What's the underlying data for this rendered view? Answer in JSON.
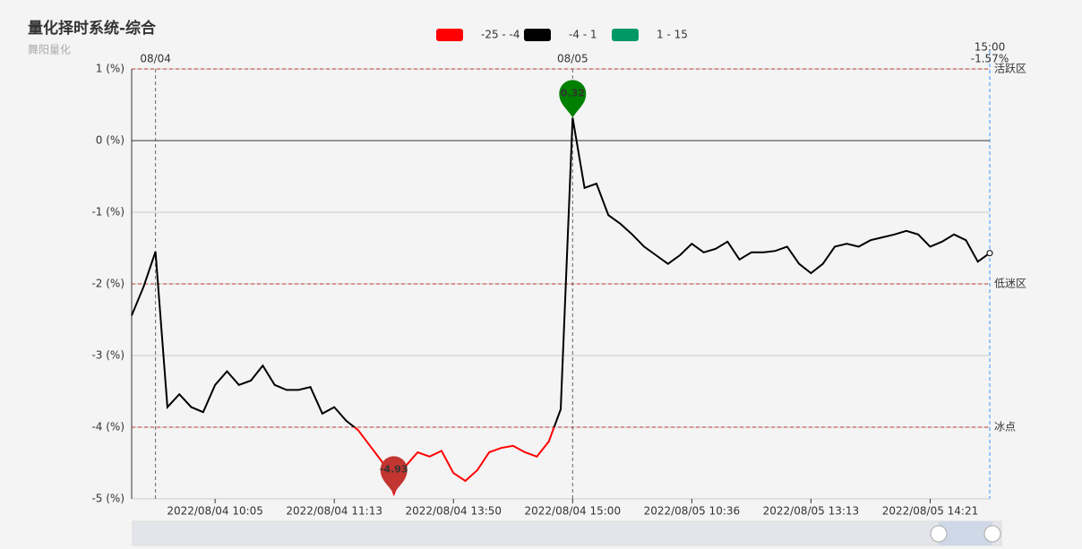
{
  "chart_data": {
    "type": "line",
    "title": "量化择时系统-综合",
    "subtitle": "舞阳量化",
    "pieces": [
      {
        "min": -25,
        "max": -4,
        "label": "-25 - -4",
        "color": "#ff0000"
      },
      {
        "min": -4,
        "max": 1,
        "label": "-4 - 1",
        "color": "#000000"
      },
      {
        "min": 1,
        "max": 15,
        "label": "1 - 15",
        "color": "#009966"
      }
    ],
    "categories": [
      null,
      null,
      null,
      null,
      null,
      null,
      null,
      "2022/08/04 10:05",
      null,
      null,
      null,
      null,
      null,
      null,
      null,
      null,
      null,
      "2022/08/04 11:13",
      null,
      null,
      null,
      null,
      null,
      null,
      null,
      null,
      null,
      "2022/08/04 13:50",
      null,
      null,
      null,
      null,
      null,
      null,
      null,
      null,
      null,
      "2022/08/04 15:00",
      null,
      null,
      null,
      null,
      null,
      null,
      null,
      null,
      null,
      "2022/08/05 10:36",
      null,
      null,
      null,
      null,
      null,
      null,
      null,
      null,
      null,
      "2022/08/05 13:13",
      null,
      null,
      null,
      null,
      null,
      null,
      null,
      null,
      null,
      "2022/08/05 14:21",
      null,
      null,
      null,
      null,
      null
    ],
    "values": [
      -2.44,
      -2.04,
      -1.55,
      -3.72,
      -3.54,
      -3.72,
      -3.79,
      -3.41,
      -3.22,
      -3.41,
      -3.35,
      -3.14,
      -3.41,
      -3.48,
      -3.48,
      -3.44,
      -3.81,
      -3.72,
      -3.91,
      -4.04,
      -4.26,
      -4.48,
      -4.93,
      -4.54,
      -4.35,
      -4.41,
      -4.33,
      -4.64,
      -4.75,
      -4.6,
      -4.35,
      -4.29,
      -4.26,
      -4.35,
      -4.41,
      -4.2,
      -3.75,
      0.32,
      -0.66,
      -0.6,
      -1.04,
      -1.16,
      -1.31,
      -1.48,
      -1.6,
      -1.72,
      -1.6,
      -1.44,
      -1.56,
      -1.51,
      -1.41,
      -1.66,
      -1.56,
      -1.56,
      -1.54,
      -1.48,
      -1.72,
      -1.85,
      -1.72,
      -1.48,
      -1.44,
      -1.48,
      -1.39,
      -1.35,
      -1.31,
      -1.26,
      -1.31,
      -1.48,
      -1.41,
      -1.31,
      -1.39,
      -1.69,
      -1.57
    ],
    "ylim": [
      -5,
      1
    ],
    "yticks": [
      {
        "value": -5,
        "label": "-5 (%)"
      },
      {
        "value": -4,
        "label": "-4 (%)"
      },
      {
        "value": -3,
        "label": "-3 (%)"
      },
      {
        "value": -2,
        "label": "-2 (%)"
      },
      {
        "value": -1,
        "label": "-1 (%)"
      },
      {
        "value": 0,
        "label": "0 (%)"
      },
      {
        "value": 1,
        "label": "1 (%)"
      }
    ],
    "grid": true,
    "day_markers": [
      "08/04",
      "08/05"
    ],
    "mark_lines": [
      {
        "value": 1,
        "label": "活跃区"
      },
      {
        "value": -2,
        "label": "低迷区"
      },
      {
        "value": -4,
        "label": "冰点"
      }
    ],
    "mark_points": [
      {
        "value": 0.32,
        "color": "#008000"
      },
      {
        "value": -4.93,
        "color": "#c23531"
      }
    ],
    "pointer": {
      "time": "15:00",
      "value": -1.57,
      "value_label": "-1.57%"
    }
  }
}
